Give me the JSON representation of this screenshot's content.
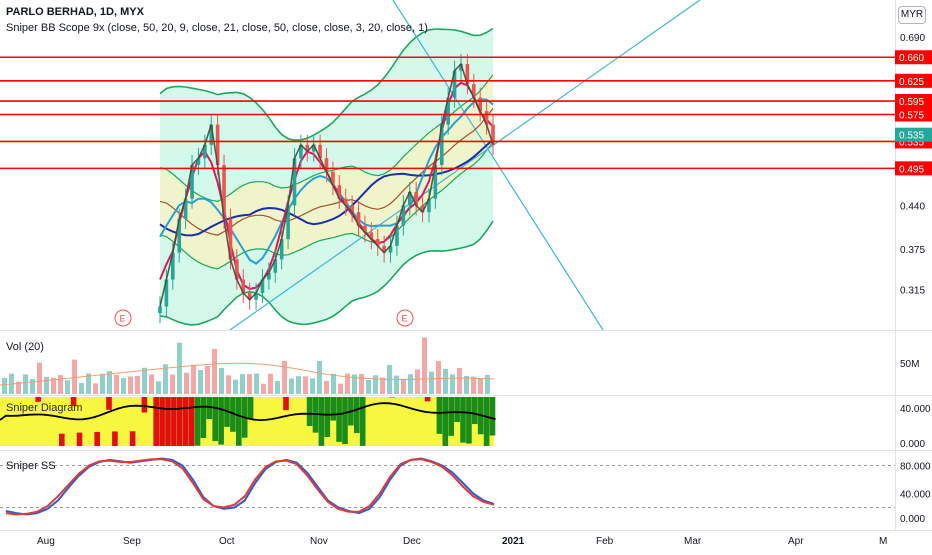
{
  "header": {
    "symbol_line": "PARLO BERHAD, 1D, MYX",
    "indicator_line": "Sniper BB Scope 9x (close, 50, 20, 9, close, 21, close, 50, close, close, 3, 20, close, 1)",
    "currency": "MYR"
  },
  "panes": {
    "volume_label": "Vol (20)",
    "diagram_label": "Sniper Diagram",
    "ss_label": "Sniper SS"
  },
  "colors": {
    "resistance": "#ff0000",
    "last_price": "#26a69a",
    "bb_outer": "#19a95b",
    "bb_fill": "#c6f5e1",
    "mid_fill": "#f6f3c2",
    "ma_fast": "#d81b60",
    "ma_mid": "#26a0da",
    "ma_slow": "#1e2ea8",
    "ma_brown": "#a0522d",
    "trend": "#3fb7d8",
    "up": "#26a69a",
    "down": "#ef5350",
    "diag_green": "#1a8c1a",
    "diag_yellow": "#f7f740",
    "diag_red": "#e01010"
  },
  "chart_data": [
    {
      "type": "candlestick",
      "title": "PARLO BERHAD, 1D, MYX",
      "y_ticks": [
        0.69,
        0.44,
        0.375,
        0.315
      ],
      "y_tick_labels": [
        "0.690",
        "0.440",
        "0.375",
        "0.315"
      ],
      "x_tick_labels": [
        "Aug",
        "Sep",
        "Oct",
        "Nov",
        "Dec",
        "2021",
        "Feb",
        "Mar",
        "Apr",
        "M"
      ],
      "horizontal_levels": [
        0.66,
        0.625,
        0.595,
        0.575,
        0.535,
        0.495
      ],
      "horizontal_level_labels": [
        "0.660",
        "0.625",
        "0.595",
        "0.575",
        "0.535",
        "0.495"
      ],
      "last_price": 0.535,
      "last_price_label": "0.535",
      "event_markers": [
        "E",
        "E"
      ],
      "close": [
        0.29,
        0.33,
        0.37,
        0.42,
        0.45,
        0.5,
        0.51,
        0.53,
        0.56,
        0.5,
        0.42,
        0.36,
        0.33,
        0.31,
        0.3,
        0.31,
        0.33,
        0.34,
        0.36,
        0.39,
        0.44,
        0.51,
        0.53,
        0.52,
        0.53,
        0.51,
        0.49,
        0.47,
        0.45,
        0.44,
        0.43,
        0.41,
        0.4,
        0.39,
        0.38,
        0.37,
        0.38,
        0.41,
        0.44,
        0.46,
        0.44,
        0.43,
        0.45,
        0.5,
        0.56,
        0.6,
        0.64,
        0.65,
        0.62,
        0.6,
        0.58,
        0.56,
        0.53
      ]
    },
    {
      "type": "bar",
      "title": "Vol (20)",
      "y_tick_labels": [
        "50M"
      ]
    },
    {
      "type": "heatmap",
      "title": "Sniper Diagram",
      "y_tick_labels": [
        "40.000",
        "0.000"
      ]
    },
    {
      "type": "line",
      "title": "Sniper SS",
      "y_tick_labels": [
        "80.000",
        "40.000",
        "0.000"
      ],
      "series": [
        {
          "values": [
            15,
            12,
            10,
            12,
            18,
            30,
            48,
            65,
            78,
            85,
            88,
            86,
            84,
            86,
            88,
            90,
            88,
            80,
            60,
            35,
            22,
            18,
            20,
            30,
            55,
            75,
            85,
            88,
            84,
            70,
            50,
            30,
            20,
            15,
            12,
            18,
            35,
            60,
            80,
            88,
            90,
            86,
            80,
            70,
            55,
            40,
            30,
            25
          ]
        },
        {
          "values": [
            12,
            10,
            11,
            14,
            22,
            36,
            52,
            68,
            80,
            86,
            87,
            85,
            85,
            87,
            89,
            89,
            86,
            76,
            55,
            32,
            22,
            20,
            24,
            36,
            60,
            78,
            86,
            87,
            82,
            66,
            46,
            28,
            18,
            14,
            14,
            22,
            40,
            64,
            82,
            88,
            89,
            85,
            78,
            66,
            50,
            36,
            28,
            24
          ]
        }
      ]
    }
  ]
}
